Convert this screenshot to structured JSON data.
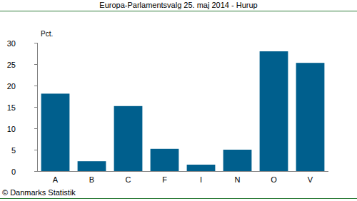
{
  "chart_data": {
    "type": "bar",
    "title": "Europa-Parlamentsvalg 25. maj 2014 - Hurup",
    "y_label": "Pct.",
    "source": "© Danmarks Statistik",
    "categories": [
      "A",
      "B",
      "C",
      "F",
      "I",
      "N",
      "O",
      "V"
    ],
    "values": [
      18.1,
      2.3,
      15.2,
      5.2,
      1.5,
      5.0,
      28.0,
      25.3
    ],
    "color": "#005f8d",
    "ylim": [
      0,
      30
    ],
    "yticks": [
      0,
      5,
      10,
      15,
      20,
      25,
      30
    ],
    "grid": false
  }
}
